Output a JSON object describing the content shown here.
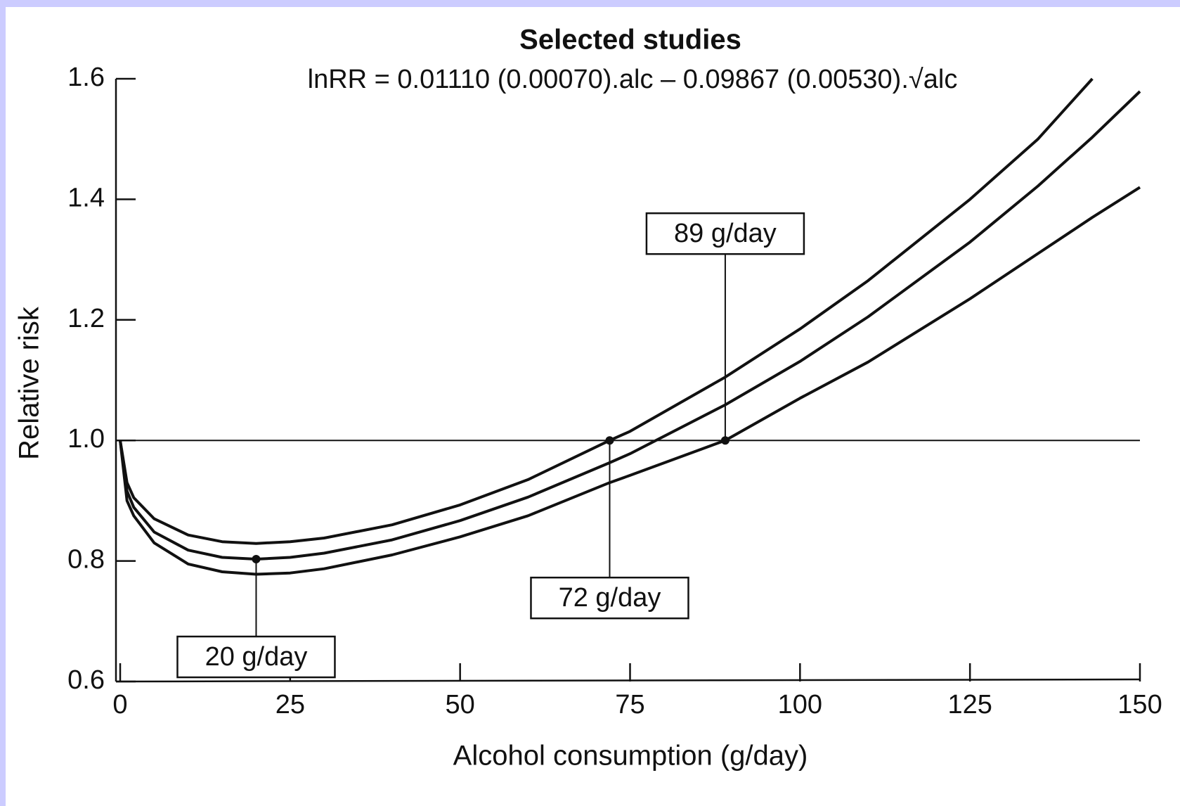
{
  "chart_data": {
    "type": "line",
    "title": "Selected studies",
    "subtitle": "lnRR = 0.01110 (0.00070).alc – 0.09867 (0.00530).√alc",
    "x_label": "Alcohol consumption (g/day)",
    "y_label": "Relative risk",
    "x": [
      0,
      1,
      2,
      5,
      10,
      15,
      20,
      25,
      30,
      40,
      50,
      60,
      72,
      75,
      89,
      100,
      110,
      125,
      135,
      143,
      150
    ],
    "series": [
      {
        "color": "#111111",
        "values": [
          1.0,
          0.93,
          0.905,
          0.87,
          0.843,
          0.832,
          0.829,
          0.832,
          0.838,
          0.86,
          0.893,
          0.935,
          1.0,
          1.015,
          1.105,
          1.185,
          1.265,
          1.4,
          1.5,
          1.6,
          null
        ]
      },
      {
        "color": "#111111",
        "values": [
          1.0,
          0.916,
          0.889,
          0.848,
          0.818,
          0.806,
          0.803,
          0.806,
          0.813,
          0.835,
          0.867,
          0.906,
          0.963,
          0.978,
          1.059,
          1.131,
          1.205,
          1.329,
          1.422,
          1.503,
          1.579
        ]
      },
      {
        "color": "#111111",
        "values": [
          1.0,
          0.9,
          0.875,
          0.83,
          0.795,
          0.782,
          0.778,
          0.78,
          0.787,
          0.81,
          0.84,
          0.875,
          0.93,
          0.942,
          1.0,
          1.07,
          1.13,
          1.235,
          1.31,
          1.37,
          1.42
        ]
      }
    ],
    "hline": 1.0,
    "annotations": [
      {
        "text": "20 g/day",
        "x": 20,
        "y": 0.803
      },
      {
        "text": "72 g/day",
        "x": 72,
        "y": 1.0
      },
      {
        "text": "89 g/day",
        "x": 89,
        "y": 1.0
      }
    ],
    "xlim": [
      0,
      150
    ],
    "xticks": [
      0,
      25,
      50,
      75,
      100,
      125,
      150
    ],
    "ylim": [
      0.6,
      1.6
    ],
    "yticks": [
      0.6,
      0.8,
      {
        "value": 1.0,
        "label": "1.0"
      },
      1.2,
      1.4,
      1.6
    ],
    "grid": false
  }
}
